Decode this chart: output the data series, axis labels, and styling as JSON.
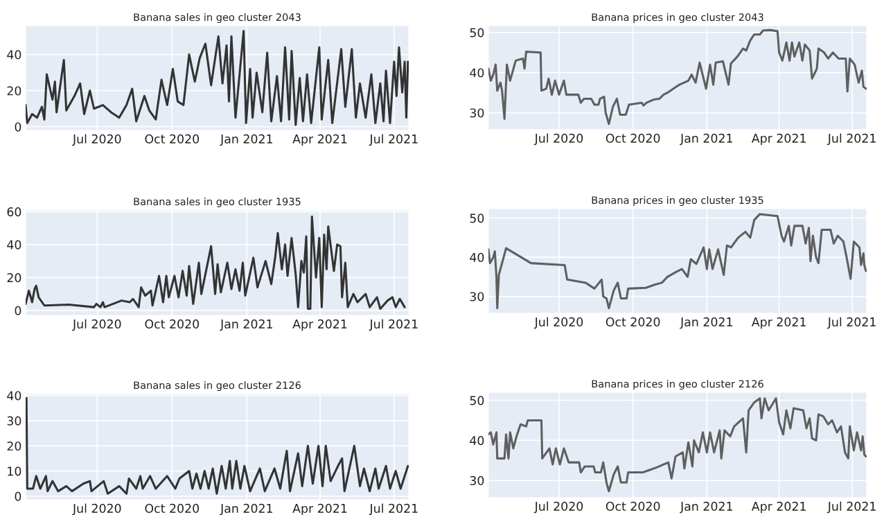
{
  "chart_data": [
    {
      "type": "line",
      "title": "Banana sales in geo cluster 2043",
      "grid": true,
      "xlim": [
        "2020-04-04",
        "2021-07-19"
      ],
      "ylim": [
        -2,
        56
      ],
      "yticks": [
        0,
        20,
        40
      ],
      "xticks": [
        {
          "value": "2020-07-01",
          "label": "Jul 2020"
        },
        {
          "value": "2020-10-01",
          "label": "Oct 2020"
        },
        {
          "value": "2021-01-01",
          "label": "Jan 2021"
        },
        {
          "value": "2021-04-01",
          "label": "Apr 2021"
        },
        {
          "value": "2021-07-01",
          "label": "Jul 2021"
        }
      ],
      "series": [
        {
          "color": "#333333",
          "x": [
            "2020-04-04",
            "2020-04-06",
            "2020-04-12",
            "2020-04-18",
            "2020-04-24",
            "2020-04-27",
            "2020-04-30",
            "2020-05-07",
            "2020-05-10",
            "2020-05-12",
            "2020-05-21",
            "2020-05-24",
            "2020-06-03",
            "2020-06-10",
            "2020-06-15",
            "2020-06-22",
            "2020-06-27",
            "2020-07-08",
            "2020-07-18",
            "2020-07-28",
            "2020-08-06",
            "2020-08-13",
            "2020-08-18",
            "2020-08-28",
            "2020-09-03",
            "2020-09-11",
            "2020-09-18",
            "2020-09-25",
            "2020-10-02",
            "2020-10-08",
            "2020-10-15",
            "2020-10-22",
            "2020-10-29",
            "2020-11-04",
            "2020-11-11",
            "2020-11-18",
            "2020-11-27",
            "2020-12-02",
            "2020-12-07",
            "2020-12-10",
            "2020-12-13",
            "2020-12-18",
            "2020-12-28",
            "2020-12-31",
            "2021-01-05",
            "2021-01-08",
            "2021-01-13",
            "2021-01-20",
            "2021-01-26",
            "2021-01-31",
            "2021-02-07",
            "2021-02-12",
            "2021-02-17",
            "2021-02-22",
            "2021-02-25",
            "2021-03-02",
            "2021-03-07",
            "2021-03-11",
            "2021-03-16",
            "2021-03-21",
            "2021-03-31",
            "2021-04-03",
            "2021-04-11",
            "2021-04-16",
            "2021-04-27",
            "2021-05-02",
            "2021-05-10",
            "2021-05-15",
            "2021-05-20",
            "2021-05-27",
            "2021-06-03",
            "2021-06-08",
            "2021-06-14",
            "2021-06-18",
            "2021-06-21",
            "2021-06-26",
            "2021-07-01",
            "2021-07-04",
            "2021-07-07",
            "2021-07-11",
            "2021-07-14",
            "2021-07-16",
            "2021-07-18"
          ],
          "values": [
            12,
            2,
            7,
            5,
            11,
            4,
            29,
            15,
            25,
            8,
            37,
            9,
            17,
            24,
            7,
            20,
            10,
            12,
            8,
            5,
            12,
            21,
            3,
            17,
            9,
            4,
            26,
            12,
            32,
            14,
            12,
            40,
            25,
            38,
            46,
            23,
            50,
            24,
            45,
            14,
            50,
            5,
            53,
            2,
            32,
            5,
            30,
            8,
            41,
            3,
            28,
            3,
            44,
            4,
            42,
            1,
            27,
            3,
            29,
            2,
            44,
            4,
            37,
            2,
            43,
            11,
            43,
            5,
            24,
            5,
            29,
            2,
            24,
            3,
            31,
            2,
            36,
            17,
            44,
            19,
            36,
            5,
            36
          ]
        }
      ]
    },
    {
      "type": "line",
      "title": "Banana prices in geo cluster 2043",
      "grid": true,
      "xlim": [
        "2020-04-04",
        "2021-07-19"
      ],
      "ylim": [
        25.8,
        51.7
      ],
      "yticks": [
        30,
        40,
        50
      ],
      "xticks": [
        {
          "value": "2020-07-01",
          "label": "Jul 2020"
        },
        {
          "value": "2020-10-01",
          "label": "Oct 2020"
        },
        {
          "value": "2021-01-01",
          "label": "Jan 2021"
        },
        {
          "value": "2021-04-01",
          "label": "Apr 2021"
        },
        {
          "value": "2021-07-01",
          "label": "Jul 2021"
        }
      ],
      "series": [
        {
          "color": "#5f5f5f",
          "x": [
            "2020-04-04",
            "2020-04-07",
            "2020-04-10",
            "2020-04-13",
            "2020-04-15",
            "2020-04-19",
            "2020-04-21",
            "2020-04-24",
            "2020-04-27",
            "2020-05-01",
            "2020-05-08",
            "2020-05-17",
            "2020-05-19",
            "2020-05-21",
            "2020-06-08",
            "2020-06-09",
            "2020-06-15",
            "2020-06-18",
            "2020-06-22",
            "2020-06-26",
            "2020-07-01",
            "2020-07-07",
            "2020-07-10",
            "2020-07-25",
            "2020-07-28",
            "2020-08-01",
            "2020-08-10",
            "2020-08-14",
            "2020-08-19",
            "2020-08-21",
            "2020-08-26",
            "2020-08-28",
            "2020-09-01",
            "2020-09-06",
            "2020-09-11",
            "2020-09-15",
            "2020-09-22",
            "2020-09-26",
            "2020-10-12",
            "2020-10-14",
            "2020-10-18",
            "2020-10-27",
            "2020-11-03",
            "2020-11-08",
            "2020-11-13",
            "2020-11-24",
            "2020-11-28",
            "2020-12-09",
            "2020-12-13",
            "2020-12-18",
            "2020-12-23",
            "2020-12-31",
            "2021-01-05",
            "2021-01-09",
            "2021-01-12",
            "2021-01-21",
            "2021-01-28",
            "2021-01-31",
            "2021-02-08",
            "2021-02-15",
            "2021-02-19",
            "2021-02-24",
            "2021-03-01",
            "2021-03-08",
            "2021-03-12",
            "2021-03-21",
            "2021-03-30",
            "2021-04-01",
            "2021-04-05",
            "2021-04-10",
            "2021-04-14",
            "2021-04-17",
            "2021-04-20",
            "2021-04-26",
            "2021-04-30",
            "2021-05-03",
            "2021-05-09",
            "2021-05-12",
            "2021-05-18",
            "2021-05-20",
            "2021-05-27",
            "2021-06-01",
            "2021-06-07",
            "2021-06-14",
            "2021-06-23",
            "2021-06-25",
            "2021-06-28",
            "2021-07-04",
            "2021-07-09",
            "2021-07-13",
            "2021-07-15",
            "2021-07-18"
          ],
          "values": [
            41,
            38,
            39.5,
            42,
            35.5,
            37.5,
            35.5,
            28.5,
            42,
            38,
            43,
            43.5,
            41,
            45.2,
            45,
            35.5,
            36,
            38.5,
            34.5,
            38,
            34.5,
            38,
            34.5,
            34.5,
            32.5,
            33.5,
            33.5,
            32,
            32,
            33.5,
            34,
            30,
            27.2,
            31.5,
            33.5,
            29.5,
            29.5,
            32,
            32.5,
            31.8,
            32.5,
            33.3,
            33.5,
            34.5,
            35,
            36.5,
            37,
            38,
            39.5,
            37.5,
            42.5,
            36,
            42,
            37,
            42.5,
            42.8,
            37,
            42.3,
            44,
            46,
            45.5,
            48,
            49.5,
            49.5,
            50.5,
            50.6,
            50.3,
            45,
            43,
            47.5,
            43,
            47.5,
            44,
            47.5,
            43,
            47,
            45.5,
            38.5,
            41,
            46,
            45,
            43.5,
            45,
            43.5,
            43.5,
            35.3,
            43.5,
            42,
            37.5,
            40.5,
            36.5,
            36
          ]
        }
      ]
    },
    {
      "type": "line",
      "title": "Banana sales in geo cluster 1935",
      "grid": true,
      "xlim": [
        "2020-04-04",
        "2021-07-19"
      ],
      "ylim": [
        -3,
        61
      ],
      "yticks": [
        0,
        20,
        40,
        60
      ],
      "xticks": [
        {
          "value": "2020-07-01",
          "label": "Jul 2020"
        },
        {
          "value": "2020-10-01",
          "label": "Oct 2020"
        },
        {
          "value": "2021-01-01",
          "label": "Jan 2021"
        },
        {
          "value": "2021-04-01",
          "label": "Apr 2021"
        },
        {
          "value": "2021-07-01",
          "label": "Jul 2021"
        }
      ],
      "series": [
        {
          "color": "#333333",
          "x": [
            "2020-04-04",
            "2020-04-08",
            "2020-04-12",
            "2020-04-15",
            "2020-04-17",
            "2020-04-20",
            "2020-04-27",
            "2020-05-27",
            "2020-06-27",
            "2020-06-30",
            "2020-07-05",
            "2020-07-08",
            "2020-07-10",
            "2020-07-31",
            "2020-08-10",
            "2020-08-14",
            "2020-08-21",
            "2020-08-24",
            "2020-08-29",
            "2020-09-05",
            "2020-09-07",
            "2020-09-15",
            "2020-09-20",
            "2020-09-24",
            "2020-09-27",
            "2020-10-04",
            "2020-10-09",
            "2020-10-14",
            "2020-10-19",
            "2020-10-22",
            "2020-10-27",
            "2020-11-03",
            "2020-11-06",
            "2020-11-11",
            "2020-11-18",
            "2020-11-23",
            "2020-11-26",
            "2020-11-30",
            "2020-12-08",
            "2020-12-13",
            "2020-12-18",
            "2020-12-23",
            "2020-12-27",
            "2020-12-30",
            "2021-01-09",
            "2021-01-14",
            "2021-01-24",
            "2021-01-31",
            "2021-02-05",
            "2021-02-08",
            "2021-02-13",
            "2021-02-17",
            "2021-02-20",
            "2021-02-25",
            "2021-03-02",
            "2021-03-05",
            "2021-03-09",
            "2021-03-12",
            "2021-03-15",
            "2021-03-17",
            "2021-03-20",
            "2021-03-22",
            "2021-03-27",
            "2021-03-31",
            "2021-04-03",
            "2021-04-06",
            "2021-04-09",
            "2021-04-11",
            "2021-04-18",
            "2021-04-22",
            "2021-04-26",
            "2021-04-28",
            "2021-05-02",
            "2021-05-05",
            "2021-05-12",
            "2021-05-17",
            "2021-05-27",
            "2021-06-01",
            "2021-06-10",
            "2021-06-14",
            "2021-06-23",
            "2021-06-29",
            "2021-07-03",
            "2021-07-08",
            "2021-07-14"
          ],
          "values": [
            4,
            12,
            5,
            13,
            15,
            8,
            3,
            3.5,
            2,
            4,
            2,
            5,
            2,
            6,
            5,
            7,
            2,
            14,
            9,
            12,
            3,
            21,
            5,
            21,
            8,
            21,
            8,
            24,
            9,
            27,
            4,
            29,
            10,
            22,
            39,
            10,
            28,
            11,
            29,
            13,
            25,
            12,
            29,
            9,
            32,
            14,
            30,
            16,
            33,
            47,
            25,
            40,
            21,
            44,
            22,
            2,
            30,
            23,
            45,
            1,
            1,
            57,
            20,
            44,
            2,
            46,
            25,
            51,
            24,
            40,
            39,
            8,
            29,
            2,
            10,
            5,
            10,
            2,
            8,
            1,
            6,
            8,
            2,
            7,
            2
          ]
        }
      ]
    },
    {
      "type": "line",
      "title": "Banana prices in geo cluster 1935",
      "grid": true,
      "xlim": [
        "2020-04-04",
        "2021-07-19"
      ],
      "ylim": [
        25.7,
        52.4
      ],
      "yticks": [
        30,
        40,
        50
      ],
      "xticks": [
        {
          "value": "2020-07-01",
          "label": "Jul 2020"
        },
        {
          "value": "2020-10-01",
          "label": "Oct 2020"
        },
        {
          "value": "2021-01-01",
          "label": "Jan 2021"
        },
        {
          "value": "2021-04-01",
          "label": "Apr 2021"
        },
        {
          "value": "2021-07-01",
          "label": "Jul 2021"
        }
      ],
      "series": [
        {
          "color": "#5f5f5f",
          "x": [
            "2020-04-04",
            "2020-04-06",
            "2020-04-10",
            "2020-04-12",
            "2020-04-14",
            "2020-04-15",
            "2020-04-17",
            "2020-04-26",
            "2020-05-27",
            "2020-07-08",
            "2020-07-11",
            "2020-08-03",
            "2020-08-14",
            "2020-08-23",
            "2020-08-25",
            "2020-08-29",
            "2020-09-01",
            "2020-09-07",
            "2020-09-12",
            "2020-09-16",
            "2020-09-23",
            "2020-09-25",
            "2020-10-17",
            "2020-10-28",
            "2020-11-06",
            "2020-11-13",
            "2020-11-24",
            "2020-12-01",
            "2020-12-08",
            "2020-12-12",
            "2020-12-19",
            "2020-12-28",
            "2021-01-01",
            "2021-01-04",
            "2021-01-08",
            "2021-01-15",
            "2021-01-22",
            "2021-01-26",
            "2021-01-31",
            "2021-02-09",
            "2021-02-18",
            "2021-02-24",
            "2021-03-01",
            "2021-03-08",
            "2021-03-30",
            "2021-04-04",
            "2021-04-07",
            "2021-04-13",
            "2021-04-16",
            "2021-04-20",
            "2021-04-30",
            "2021-05-04",
            "2021-05-08",
            "2021-05-10",
            "2021-05-13",
            "2021-05-17",
            "2021-05-20",
            "2021-05-24",
            "2021-06-04",
            "2021-06-08",
            "2021-06-13",
            "2021-06-20",
            "2021-06-24",
            "2021-06-29",
            "2021-07-03",
            "2021-07-10",
            "2021-07-12",
            "2021-07-15",
            "2021-07-16",
            "2021-07-18"
          ],
          "values": [
            42,
            38.5,
            40,
            41.5,
            35,
            27,
            35.5,
            42.3,
            38.5,
            38,
            34.3,
            33.5,
            32,
            34.3,
            30,
            29.5,
            27,
            31.5,
            33.5,
            29.5,
            29.5,
            32,
            32.2,
            33,
            33.5,
            35,
            36.3,
            37,
            35,
            39.5,
            38.3,
            42.5,
            37,
            42,
            37,
            42,
            35.5,
            43,
            42.5,
            45,
            46.5,
            45,
            49.5,
            51,
            50.5,
            45.5,
            44,
            48,
            43,
            48,
            48,
            43.5,
            47.5,
            39,
            45.5,
            40,
            38.5,
            47,
            47,
            43.5,
            45.5,
            44,
            40,
            34.5,
            44,
            42.5,
            38,
            41,
            38,
            36.5
          ]
        }
      ]
    },
    {
      "type": "line",
      "title": "Banana sales in geo cluster 2126",
      "grid": true,
      "xlim": [
        "2020-04-04",
        "2021-07-19"
      ],
      "ylim": [
        -1.4,
        40.7
      ],
      "yticks": [
        0,
        10,
        20,
        30,
        40
      ],
      "xticks": [
        {
          "value": "2020-07-01",
          "label": "Jul 2020"
        },
        {
          "value": "2020-10-01",
          "label": "Oct 2020"
        },
        {
          "value": "2021-01-01",
          "label": "Jan 2021"
        },
        {
          "value": "2021-04-01",
          "label": "Apr 2021"
        },
        {
          "value": "2021-07-01",
          "label": "Jul 2021"
        }
      ],
      "series": [
        {
          "color": "#333333",
          "x": [
            "2020-04-05",
            "2020-04-06",
            "2020-04-13",
            "2020-04-17",
            "2020-04-22",
            "2020-04-29",
            "2020-05-01",
            "2020-05-07",
            "2020-05-14",
            "2020-05-24",
            "2020-05-31",
            "2020-06-14",
            "2020-06-22",
            "2020-06-24",
            "2020-07-09",
            "2020-07-14",
            "2020-07-28",
            "2020-08-06",
            "2020-08-09",
            "2020-08-18",
            "2020-08-23",
            "2020-08-26",
            "2020-09-04",
            "2020-09-11",
            "2020-09-25",
            "2020-10-05",
            "2020-10-10",
            "2020-10-22",
            "2020-10-26",
            "2020-10-31",
            "2020-11-05",
            "2020-11-10",
            "2020-11-15",
            "2020-11-20",
            "2020-11-25",
            "2020-12-01",
            "2020-12-06",
            "2020-12-11",
            "2020-12-14",
            "2020-12-19",
            "2020-12-24",
            "2020-12-29",
            "2021-01-05",
            "2021-01-17",
            "2021-01-23",
            "2021-02-04",
            "2021-02-11",
            "2021-02-19",
            "2021-02-23",
            "2021-03-05",
            "2021-03-10",
            "2021-03-17",
            "2021-03-23",
            "2021-03-30",
            "2021-04-04",
            "2021-04-08",
            "2021-04-14",
            "2021-04-23",
            "2021-04-28",
            "2021-05-01",
            "2021-05-13",
            "2021-05-20",
            "2021-05-25",
            "2021-06-01",
            "2021-06-08",
            "2021-06-12",
            "2021-06-21",
            "2021-06-26",
            "2021-07-03",
            "2021-07-09",
            "2021-07-18"
          ],
          "values": [
            39,
            3,
            3,
            8,
            3,
            8,
            2,
            6,
            2,
            4,
            2,
            5,
            6,
            2,
            6,
            1,
            4,
            1,
            7,
            3,
            8,
            3,
            8,
            3,
            8,
            3,
            7,
            10,
            3,
            9,
            3,
            10,
            3,
            11,
            1,
            12,
            3,
            14,
            3,
            14,
            3,
            12,
            2,
            11,
            2,
            11,
            3,
            18,
            2,
            17,
            4,
            20,
            5,
            20,
            4,
            20,
            6,
            12,
            15,
            2,
            20,
            4,
            11,
            2,
            11,
            3,
            12,
            3,
            10,
            3,
            12
          ]
        }
      ]
    },
    {
      "type": "line",
      "title": "Banana prices in geo cluster 2126",
      "grid": true,
      "xlim": [
        "2020-04-04",
        "2021-07-19"
      ],
      "ylim": [
        25.7,
        52
      ],
      "yticks": [
        30,
        40,
        50
      ],
      "xticks": [
        {
          "value": "2020-07-01",
          "label": "Jul 2020"
        },
        {
          "value": "2020-10-01",
          "label": "Oct 2020"
        },
        {
          "value": "2021-01-01",
          "label": "Jan 2021"
        },
        {
          "value": "2021-04-01",
          "label": "Apr 2021"
        },
        {
          "value": "2021-07-01",
          "label": "Jul 2021"
        }
      ],
      "series": [
        {
          "color": "#5f5f5f",
          "x": [
            "2020-04-04",
            "2020-04-07",
            "2020-04-10",
            "2020-04-14",
            "2020-04-15",
            "2020-04-24",
            "2020-04-26",
            "2020-04-29",
            "2020-05-01",
            "2020-05-05",
            "2020-05-09",
            "2020-05-14",
            "2020-05-21",
            "2020-05-23",
            "2020-06-09",
            "2020-06-10",
            "2020-06-19",
            "2020-06-23",
            "2020-06-27",
            "2020-07-02",
            "2020-07-07",
            "2020-07-13",
            "2020-07-26",
            "2020-07-28",
            "2020-08-02",
            "2020-08-13",
            "2020-08-15",
            "2020-08-22",
            "2020-08-25",
            "2020-08-29",
            "2020-09-01",
            "2020-09-07",
            "2020-09-12",
            "2020-09-16",
            "2020-09-23",
            "2020-09-25",
            "2020-10-13",
            "2020-10-20",
            "2020-10-31",
            "2020-11-14",
            "2020-11-18",
            "2020-11-23",
            "2020-12-02",
            "2020-12-04",
            "2020-12-09",
            "2020-12-14",
            "2020-12-16",
            "2020-12-22",
            "2020-12-27",
            "2021-01-01",
            "2021-01-05",
            "2021-01-10",
            "2021-01-17",
            "2021-01-19",
            "2021-01-23",
            "2021-01-30",
            "2021-02-04",
            "2021-02-15",
            "2021-02-19",
            "2021-02-22",
            "2021-03-01",
            "2021-03-08",
            "2021-03-10",
            "2021-03-14",
            "2021-03-19",
            "2021-03-28",
            "2021-04-01",
            "2021-04-06",
            "2021-04-10",
            "2021-04-15",
            "2021-04-19",
            "2021-05-01",
            "2021-05-05",
            "2021-05-09",
            "2021-05-12",
            "2021-05-17",
            "2021-05-20",
            "2021-05-26",
            "2021-06-01",
            "2021-06-06",
            "2021-06-12",
            "2021-06-17",
            "2021-06-22",
            "2021-06-26",
            "2021-06-28",
            "2021-07-03",
            "2021-07-07",
            "2021-07-12",
            "2021-07-14",
            "2021-07-16",
            "2021-07-18"
          ],
          "values": [
            41.5,
            42,
            39,
            42,
            35.5,
            35.5,
            41.5,
            35.5,
            42,
            38,
            41,
            44,
            43.5,
            45,
            45,
            35.5,
            38,
            34,
            38,
            34,
            38,
            34.5,
            34.5,
            32,
            33.5,
            33.5,
            32,
            32,
            34.5,
            29.5,
            27.3,
            31.5,
            33.5,
            29.5,
            29.5,
            32,
            32,
            32.5,
            33.3,
            34.5,
            30.5,
            36,
            37,
            33,
            39.5,
            33.5,
            40,
            37,
            42,
            37,
            42,
            37,
            42.5,
            35.5,
            42.5,
            41,
            43.5,
            45.5,
            37,
            47.5,
            49.5,
            50.5,
            45.5,
            50.5,
            47.5,
            50.5,
            44.5,
            41.5,
            47.5,
            43,
            48,
            47.5,
            43,
            45.5,
            40.5,
            40,
            46.5,
            46,
            44,
            45,
            42,
            43.5,
            37,
            35.5,
            43.5,
            37.5,
            42,
            37.5,
            41,
            36.5,
            36
          ]
        }
      ]
    }
  ]
}
